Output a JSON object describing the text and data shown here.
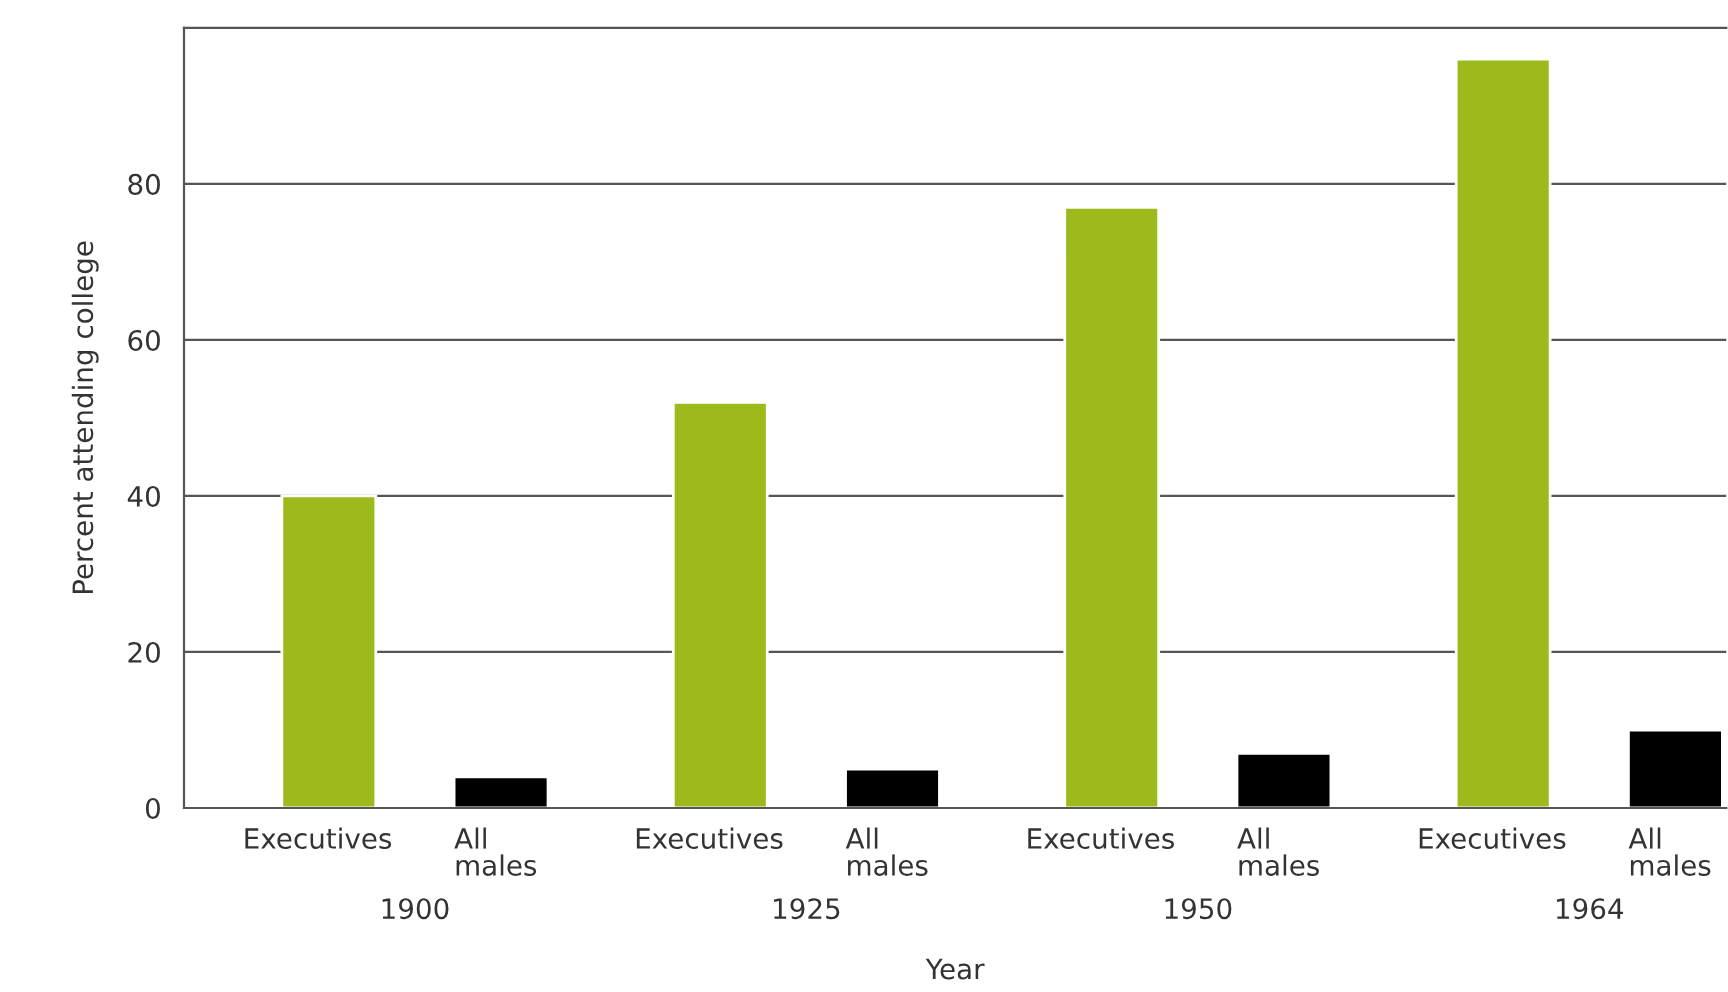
{
  "chart_data": {
    "type": "bar",
    "xlabel": "Year",
    "ylabel": "Percent attending college",
    "categories": [
      "1900",
      "1925",
      "1950",
      "1964"
    ],
    "series": [
      {
        "name": "Executives",
        "color": "#9dba1c",
        "values": [
          40,
          52,
          77,
          96
        ]
      },
      {
        "name": "All\nmales",
        "color": "#000000",
        "values": [
          4,
          5,
          7,
          10
        ]
      }
    ],
    "ylim": [
      0,
      100
    ],
    "yticks": [
      0,
      20,
      40,
      60,
      80
    ],
    "grid": "y",
    "legend": false
  }
}
